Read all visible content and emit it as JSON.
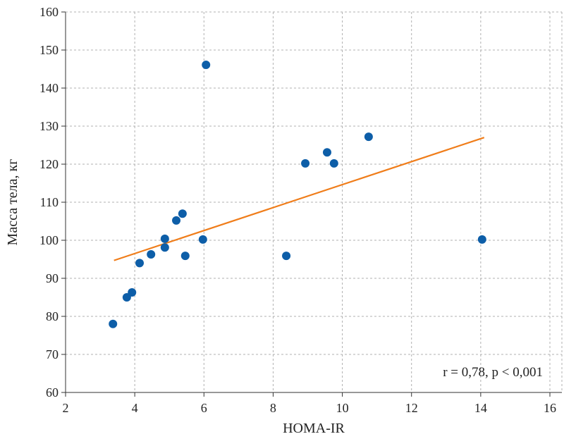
{
  "chart_data": {
    "type": "scatter",
    "title": "",
    "xlabel": "HOMA-IR",
    "ylabel": "Масса тела, кг",
    "xlim": [
      2,
      16.35
    ],
    "ylim": [
      60,
      160
    ],
    "xticks": [
      2,
      4,
      6,
      8,
      10,
      12,
      14,
      16
    ],
    "yticks": [
      60,
      70,
      80,
      90,
      100,
      110,
      120,
      130,
      140,
      150,
      160
    ],
    "grid": true,
    "annotation": "r = 0,78, p < 0,001",
    "colors": {
      "points": "#0d5ea8",
      "trend": "#f07d1a",
      "grid": "#b0b0b0"
    },
    "points": [
      [
        3.37,
        78
      ],
      [
        3.77,
        85
      ],
      [
        3.92,
        86.3
      ],
      [
        4.14,
        94
      ],
      [
        4.47,
        96.3
      ],
      [
        4.87,
        100.4
      ],
      [
        4.87,
        98.1
      ],
      [
        5.2,
        105.2
      ],
      [
        5.38,
        107
      ],
      [
        5.46,
        95.9
      ],
      [
        5.97,
        100.2
      ],
      [
        6.06,
        146.1
      ],
      [
        8.38,
        95.9
      ],
      [
        8.93,
        120.2
      ],
      [
        9.56,
        123.1
      ],
      [
        9.76,
        120.2
      ],
      [
        10.76,
        127.2
      ],
      [
        14.04,
        100.2
      ]
    ],
    "trendline": {
      "x": [
        3.4,
        14.1
      ],
      "y": [
        94.7,
        127
      ]
    }
  }
}
